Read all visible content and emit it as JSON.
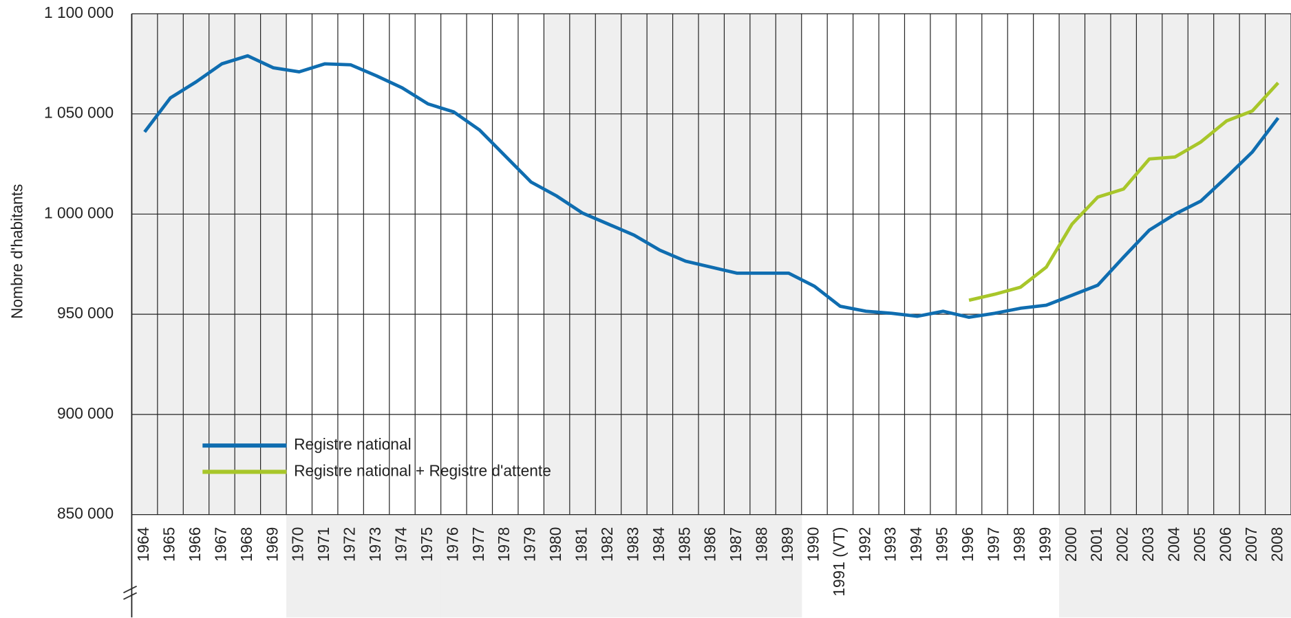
{
  "chart_data": {
    "type": "line",
    "y_label": "Nombre d'habitants",
    "categories": [
      "1964",
      "1965",
      "1966",
      "1967",
      "1968",
      "1969",
      "1970",
      "1971",
      "1972",
      "1973",
      "1974",
      "1975",
      "1976",
      "1977",
      "1978",
      "1979",
      "1980",
      "1981",
      "1982",
      "1983",
      "1984",
      "1985",
      "1986",
      "1987",
      "1988",
      "1989",
      "1990",
      "1991 (VT)",
      "1992",
      "1993",
      "1994",
      "1995",
      "1996",
      "1997",
      "1998",
      "1999",
      "2000",
      "2001",
      "2002",
      "2003",
      "2004",
      "2005",
      "2006",
      "2007",
      "2008"
    ],
    "series": [
      {
        "name": "Registre national",
        "color": "#0f6db0",
        "values": [
          1041000,
          1058000,
          1066000,
          1075000,
          1079000,
          1073000,
          1071000,
          1075000,
          1074500,
          1069000,
          1063000,
          1055000,
          1051000,
          1042000,
          1029000,
          1016000,
          1009000,
          1000500,
          995000,
          989500,
          982000,
          976500,
          973500,
          970500,
          970500,
          970500,
          964000,
          954000,
          951500,
          950500,
          949000,
          951500,
          948500,
          950500,
          953000,
          954500,
          959500,
          964500,
          978500,
          992000,
          1000000,
          1006500,
          1018500,
          1031000,
          1048000
        ]
      },
      {
        "name": "Registre national + Registre d'attente",
        "color": "#a8c62a",
        "values": [
          null,
          null,
          null,
          null,
          null,
          null,
          null,
          null,
          null,
          null,
          null,
          null,
          null,
          null,
          null,
          null,
          null,
          null,
          null,
          null,
          null,
          null,
          null,
          null,
          null,
          null,
          null,
          null,
          null,
          null,
          null,
          null,
          957000,
          960000,
          963500,
          973500,
          995000,
          1008500,
          1012500,
          1027500,
          1028500,
          1036000,
          1046500,
          1051500,
          1065500
        ]
      }
    ],
    "ylim": [
      850000,
      1100000
    ],
    "yticks": [
      {
        "value": 850000,
        "label": "850 000"
      },
      {
        "value": 900000,
        "label": "900 000"
      },
      {
        "value": 950000,
        "label": "950 000"
      },
      {
        "value": 1000000,
        "label": "1 000 000"
      },
      {
        "value": 1050000,
        "label": "1 050 000"
      },
      {
        "value": 1100000,
        "label": "1 100 000"
      }
    ],
    "grid": true,
    "legend": "lower left"
  }
}
